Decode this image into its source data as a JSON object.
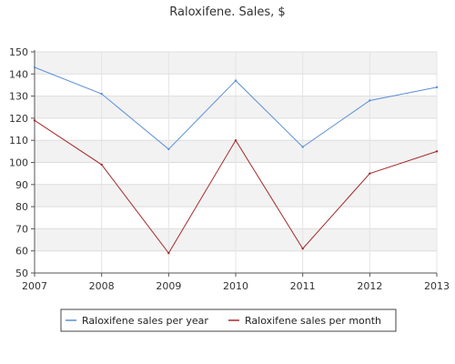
{
  "chart_data": {
    "type": "line",
    "title": "Raloxifene. Sales, $",
    "xlabel": "",
    "ylabel": "",
    "x": [
      "2007",
      "2008",
      "2009",
      "2010",
      "2011",
      "2012",
      "2013"
    ],
    "ylim": [
      50,
      150
    ],
    "yticks": [
      50,
      60,
      70,
      80,
      90,
      100,
      110,
      120,
      130,
      140,
      150
    ],
    "grid": true,
    "legend_position": "bottom",
    "series": [
      {
        "name": "Raloxifene sales per year",
        "color": "#5b8fd6",
        "values": [
          143,
          131,
          106,
          137,
          107,
          128,
          134
        ]
      },
      {
        "name": "Raloxifene sales per month",
        "color": "#a52a2a",
        "values": [
          119,
          99,
          59,
          110,
          61,
          95,
          105
        ]
      }
    ]
  }
}
